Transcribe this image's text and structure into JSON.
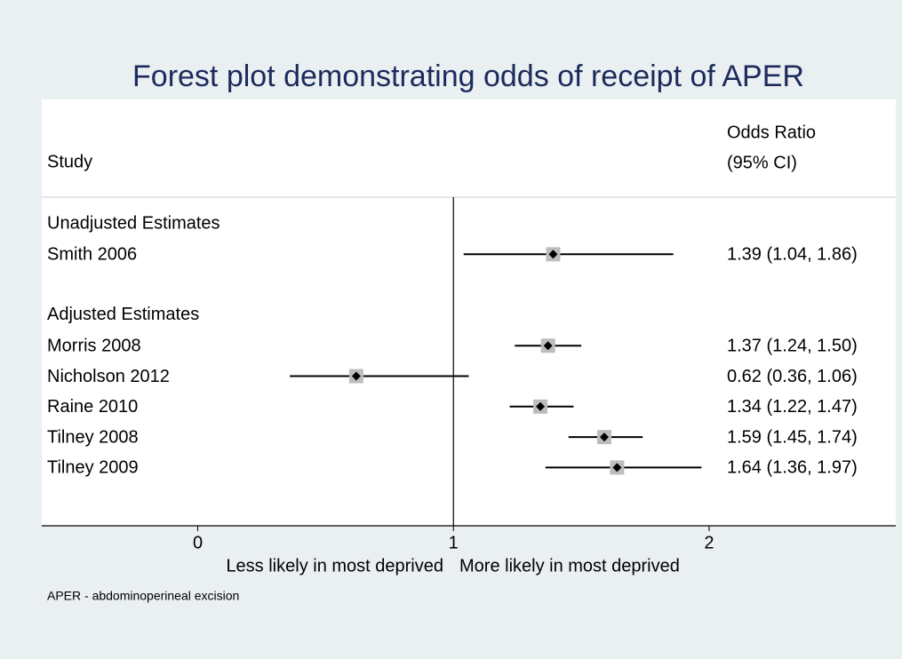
{
  "chart_data": {
    "type": "forest",
    "title": "Forest plot demonstrating odds of receipt of APER",
    "study_header": "Study",
    "estimate_header": [
      "Odds Ratio",
      "(95% CI)"
    ],
    "groups": [
      {
        "name": "Unadjusted Estimates",
        "studies": [
          "Smith 2006"
        ],
        "values": [
          1.39
        ],
        "lower": [
          1.04
        ],
        "upper": [
          1.86
        ],
        "value_labels": [
          "1.39 (1.04, 1.86)"
        ]
      },
      {
        "name": "Adjusted Estimates",
        "studies": [
          "Morris 2008",
          "Nicholson 2012",
          "Raine 2010",
          "Tilney 2008",
          "Tilney 2009"
        ],
        "values": [
          1.37,
          0.62,
          1.34,
          1.59,
          1.64
        ],
        "lower": [
          1.24,
          0.36,
          1.22,
          1.45,
          1.36
        ],
        "upper": [
          1.5,
          1.06,
          1.47,
          1.74,
          1.97
        ],
        "value_labels": [
          "1.37 (1.24, 1.50)",
          "0.62 (0.36, 1.06)",
          "1.34 (1.22, 1.47)",
          "1.59 (1.45, 1.74)",
          "1.64 (1.36, 1.97)"
        ]
      }
    ],
    "reference_line": 1,
    "xlim": [
      -0.61,
      2.73
    ],
    "xticks": [
      0,
      1,
      2
    ],
    "left_label": "Less likely in most deprived",
    "right_label": "More likely in most deprived",
    "note": "APER - abdominoperineal excision",
    "title_color": "#1c2b5c",
    "marker_color": "#000000",
    "box_color": "#bdbdbd"
  }
}
